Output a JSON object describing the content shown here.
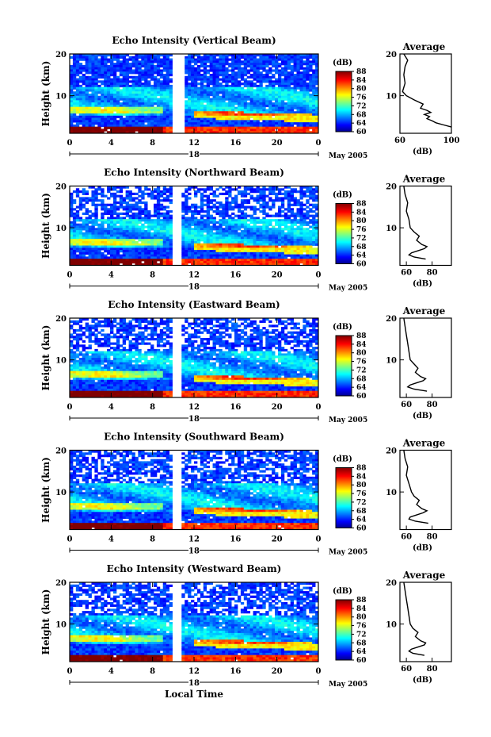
{
  "figure": {
    "ylabel": "Height (km)",
    "xlabel": "Local Time",
    "month_label": "May 2005",
    "colorbar_unit": "(dB)",
    "average_title": "Average",
    "average_xlabel": "(dB)"
  },
  "chart_data": [
    {
      "type": "heatmap",
      "title": "Echo Intensity (Vertical Beam)",
      "x_ticks": [
        "0",
        "4",
        "8",
        "12",
        "16",
        "20",
        "0"
      ],
      "day_marks": [
        "18"
      ],
      "y_ticks": [
        "20",
        "10"
      ],
      "colorbar_ticks": [
        "88",
        "84",
        "80",
        "76",
        "72",
        "68",
        "64",
        "60"
      ],
      "clim": [
        60,
        88
      ],
      "average": {
        "x_ticks": [
          "60",
          "100"
        ],
        "xlim": [
          60,
          100
        ],
        "y_ticks": [
          "20",
          "10"
        ],
        "profile_height_km": [
          20,
          18.5,
          17,
          15,
          13,
          11,
          10,
          9,
          8,
          7,
          6.5,
          6,
          5.5,
          5,
          4.5,
          4,
          3.5,
          3,
          2.5
        ],
        "profile_db": [
          63,
          66,
          64,
          63,
          64,
          62,
          65,
          71,
          78,
          76,
          81,
          84,
          79,
          83,
          81,
          85,
          88,
          94,
          100
        ]
      }
    },
    {
      "type": "heatmap",
      "title": "Echo Intensity (Northward Beam)",
      "x_ticks": [
        "0",
        "4",
        "8",
        "12",
        "16",
        "20",
        "0"
      ],
      "day_marks": [
        "18"
      ],
      "y_ticks": [
        "20",
        "10"
      ],
      "colorbar_ticks": [
        "88",
        "84",
        "80",
        "76",
        "72",
        "68",
        "64",
        "60"
      ],
      "clim": [
        60,
        88
      ],
      "average": {
        "x_ticks": [
          "60",
          "80"
        ],
        "xlim": [
          55,
          95
        ],
        "y_ticks": [
          "20",
          "10"
        ],
        "profile_height_km": [
          20,
          18,
          16,
          14,
          12,
          10,
          9,
          8,
          7,
          6,
          5.5,
          5,
          4.5,
          4,
          3.5,
          3,
          2.5
        ],
        "profile_db": [
          58,
          59,
          61,
          60,
          62,
          63,
          66,
          70,
          68,
          72,
          76,
          74,
          69,
          64,
          62,
          66,
          75
        ]
      }
    },
    {
      "type": "heatmap",
      "title": "Echo Intensity (Eastward Beam)",
      "x_ticks": [
        "0",
        "4",
        "8",
        "12",
        "16",
        "20",
        "0"
      ],
      "day_marks": [
        "18"
      ],
      "y_ticks": [
        "20",
        "10"
      ],
      "colorbar_ticks": [
        "88",
        "84",
        "80",
        "76",
        "72",
        "68",
        "64",
        "60"
      ],
      "clim": [
        60,
        88
      ],
      "average": {
        "x_ticks": [
          "60",
          "80"
        ],
        "xlim": [
          55,
          95
        ],
        "y_ticks": [
          "20",
          "10"
        ],
        "profile_height_km": [
          20,
          18,
          16,
          14,
          12,
          10,
          9,
          8,
          7,
          6,
          5.5,
          5,
          4.5,
          4,
          3.5,
          3,
          2.5
        ],
        "profile_db": [
          58,
          59,
          60,
          61,
          62,
          63,
          66,
          69,
          67,
          71,
          75,
          73,
          68,
          63,
          61,
          66,
          76
        ]
      }
    },
    {
      "type": "heatmap",
      "title": "Echo Intensity (Southward Beam)",
      "x_ticks": [
        "0",
        "4",
        "8",
        "12",
        "16",
        "20",
        "0"
      ],
      "day_marks": [
        "18"
      ],
      "y_ticks": [
        "20",
        "10"
      ],
      "colorbar_ticks": [
        "88",
        "84",
        "80",
        "76",
        "72",
        "68",
        "64",
        "60"
      ],
      "clim": [
        60,
        88
      ],
      "average": {
        "x_ticks": [
          "60",
          "80"
        ],
        "xlim": [
          55,
          95
        ],
        "y_ticks": [
          "20",
          "10"
        ],
        "profile_height_km": [
          20,
          18,
          16,
          14,
          12,
          10,
          9,
          8,
          7,
          6,
          5.5,
          5,
          4.5,
          4,
          3.5,
          3,
          2.5
        ],
        "profile_db": [
          58,
          59,
          61,
          60,
          62,
          64,
          66,
          70,
          68,
          72,
          76,
          73,
          68,
          63,
          62,
          67,
          77
        ]
      }
    },
    {
      "type": "heatmap",
      "title": "Echo Intensity (Westward Beam)",
      "x_ticks": [
        "0",
        "4",
        "8",
        "12",
        "16",
        "20",
        "0"
      ],
      "day_marks": [
        "18"
      ],
      "y_ticks": [
        "20",
        "10"
      ],
      "colorbar_ticks": [
        "88",
        "84",
        "80",
        "76",
        "72",
        "68",
        "64",
        "60"
      ],
      "clim": [
        60,
        88
      ],
      "average": {
        "x_ticks": [
          "60",
          "80"
        ],
        "xlim": [
          55,
          95
        ],
        "y_ticks": [
          "20",
          "10"
        ],
        "profile_height_km": [
          20,
          18,
          16,
          14,
          12,
          10,
          9,
          8,
          7,
          6,
          5.5,
          5,
          4.5,
          4,
          3.5,
          3,
          2.5
        ],
        "profile_db": [
          58,
          59,
          60,
          61,
          62,
          63,
          65,
          69,
          67,
          71,
          75,
          74,
          69,
          64,
          62,
          65,
          74
        ]
      }
    }
  ]
}
